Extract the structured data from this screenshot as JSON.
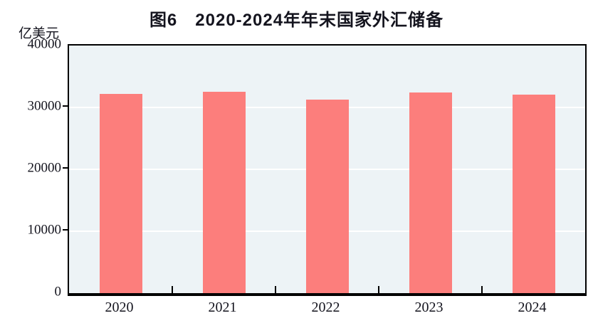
{
  "chart_data": {
    "type": "bar",
    "title": "图6　2020-2024年年末国家外汇储备",
    "ylabel": "亿美元",
    "xlabel": "",
    "categories": [
      "2020",
      "2021",
      "2022",
      "2023",
      "2024"
    ],
    "values": [
      32165,
      32502,
      31277,
      32380,
      32024
    ],
    "ylim": [
      0,
      40000
    ],
    "yticks": [
      0,
      10000,
      20000,
      30000,
      40000
    ],
    "grid": "horizontal white gridlines at 10000/20000/30000",
    "legend": "none",
    "colors": {
      "bar": "#FC7E7C",
      "plot_background": "#EDF3F6",
      "gridline": "#FFFFFF",
      "axis_frame": "#000000",
      "text": "#14141E"
    }
  }
}
